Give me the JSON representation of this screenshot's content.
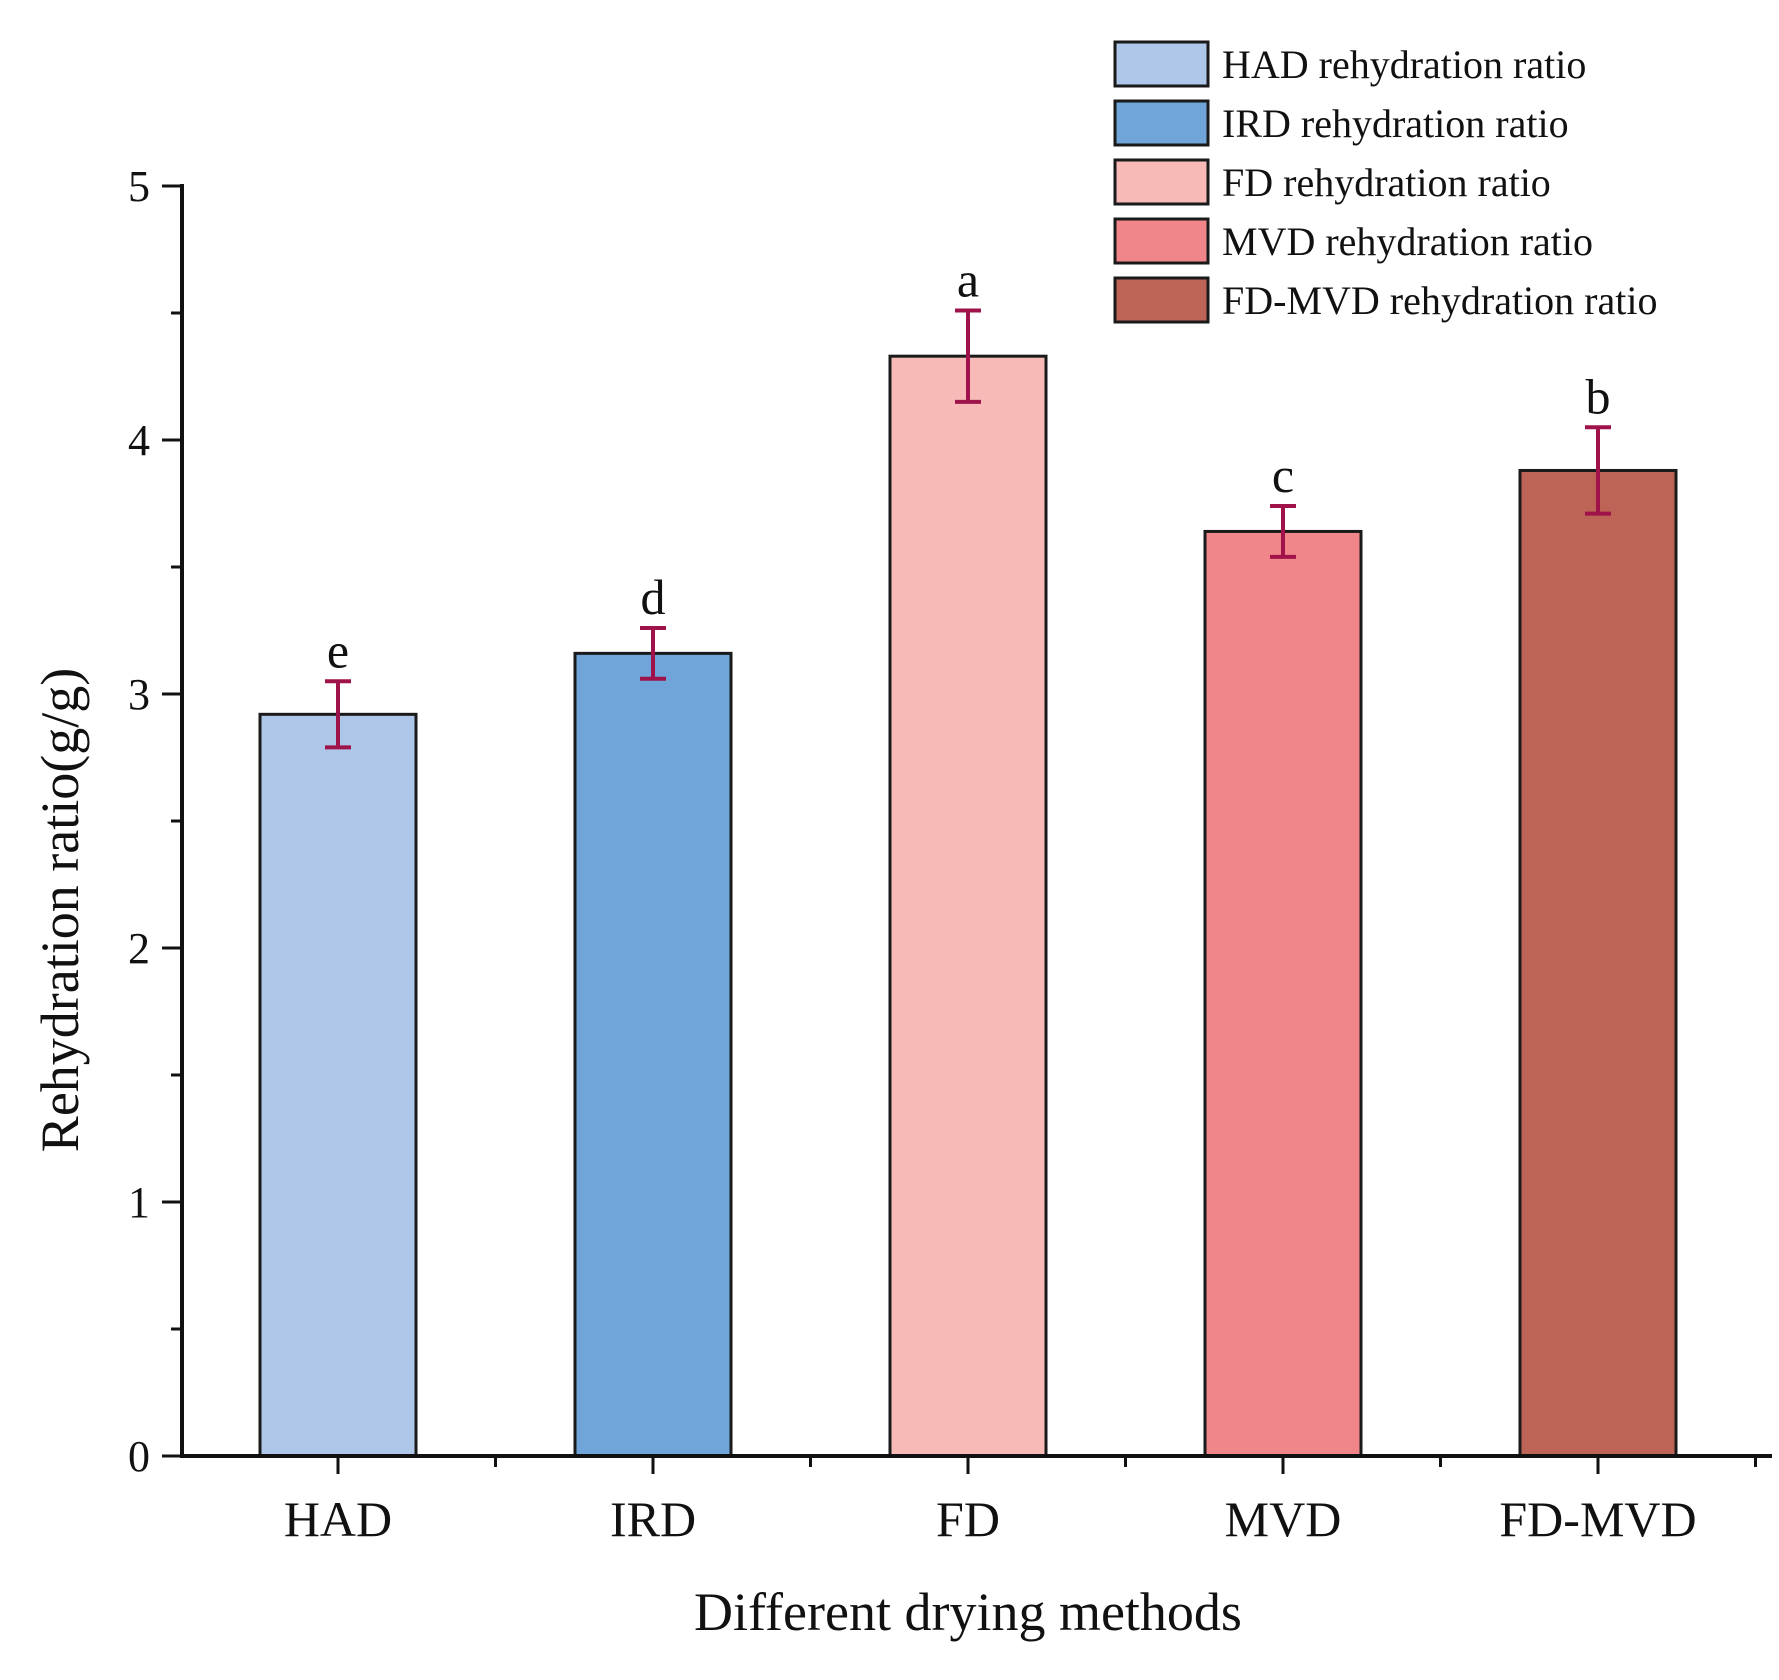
{
  "chart_data": {
    "type": "bar",
    "title": "",
    "xlabel": "Different drying methods",
    "ylabel": "Rehydration ratio(g/g)",
    "ylim": [
      0,
      5
    ],
    "yticks": [
      "0",
      "1",
      "2",
      "3",
      "4",
      "5"
    ],
    "categories": [
      "HAD",
      "IRD",
      "FD",
      "MVD",
      "FD-MVD"
    ],
    "values": [
      2.92,
      3.16,
      4.33,
      3.64,
      3.88
    ],
    "errors": [
      0.13,
      0.1,
      0.18,
      0.1,
      0.17
    ],
    "significance": [
      "e",
      "d",
      "a",
      "c",
      "b"
    ],
    "colors": [
      "#aec7e8",
      "#6fa5d8",
      "#f7bab6",
      "#f0858a",
      "#bd6456"
    ],
    "error_color": "#a0134a",
    "legend": {
      "position": "top-right",
      "items": [
        "HAD rehydration ratio",
        "IRD rehydration ratio",
        "FD rehydration ratio",
        "MVD rehydration ratio",
        "FD-MVD rehydration ratio"
      ]
    }
  }
}
